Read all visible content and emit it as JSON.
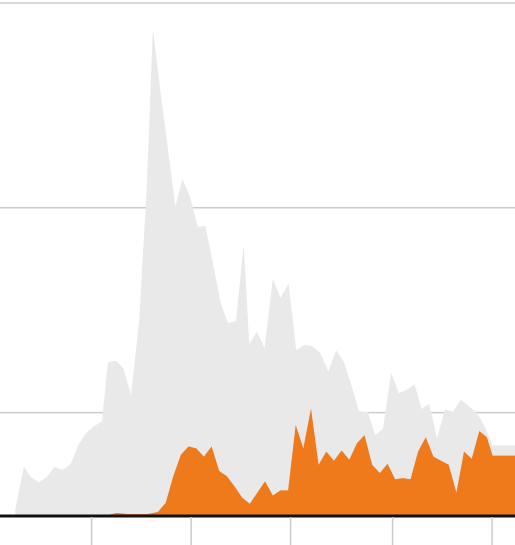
{
  "chart_data": {
    "type": "area",
    "title": "",
    "xlabel": "",
    "ylabel": "",
    "xlim": [
      0,
      100
    ],
    "ylim": [
      0,
      100
    ],
    "gridlines_y": [
      20,
      60,
      100
    ],
    "x_ticks": [
      17,
      36.5,
      56,
      76,
      95.5
    ],
    "grid": true,
    "legend": "none",
    "colors": {
      "background": "#e9e9e9",
      "foreground": "#ee7a1c",
      "grid": "#cccccc",
      "axis": "#111111"
    },
    "series": [
      {
        "key": "total",
        "values": [
          [
            2.0,
            1.0
          ],
          [
            3.7,
            9.4
          ],
          [
            5.1,
            7.4
          ],
          [
            6.6,
            6.4
          ],
          [
            8.2,
            7.4
          ],
          [
            9.7,
            9.4
          ],
          [
            11.3,
            8.8
          ],
          [
            12.8,
            9.8
          ],
          [
            14.4,
            13.7
          ],
          [
            15.9,
            16.0
          ],
          [
            17.5,
            17.4
          ],
          [
            19.0,
            18.2
          ],
          [
            20.2,
            29.9
          ],
          [
            21.8,
            30.1
          ],
          [
            23.2,
            28.7
          ],
          [
            24.7,
            23.4
          ],
          [
            26.3,
            37.7
          ],
          [
            27.8,
            64.1
          ],
          [
            29.0,
            94.9
          ],
          [
            30.5,
            82.6
          ],
          [
            32.0,
            71.1
          ],
          [
            33.4,
            60.2
          ],
          [
            34.8,
            65.6
          ],
          [
            36.3,
            62.1
          ],
          [
            37.8,
            56.3
          ],
          [
            39.3,
            56.5
          ],
          [
            40.8,
            49.0
          ],
          [
            42.3,
            41.4
          ],
          [
            43.7,
            37.5
          ],
          [
            45.3,
            37.9
          ],
          [
            46.8,
            52.7
          ],
          [
            47.9,
            33.4
          ],
          [
            49.4,
            35.8
          ],
          [
            50.9,
            32.6
          ],
          [
            52.5,
            46.2
          ],
          [
            54.0,
            42.4
          ],
          [
            55.6,
            45.2
          ],
          [
            57.1,
            32.2
          ],
          [
            58.7,
            33.2
          ],
          [
            60.2,
            33.0
          ],
          [
            61.8,
            31.7
          ],
          [
            63.4,
            28.0
          ],
          [
            64.9,
            32.2
          ],
          [
            66.4,
            30.0
          ],
          [
            68.0,
            25.1
          ],
          [
            69.5,
            20.0
          ],
          [
            71.1,
            20.2
          ],
          [
            72.6,
            15.6
          ],
          [
            74.1,
            16.8
          ],
          [
            75.7,
            27.8
          ],
          [
            77.2,
            23.8
          ],
          [
            78.7,
            24.4
          ],
          [
            80.3,
            25.5
          ],
          [
            81.7,
            20.7
          ],
          [
            83.2,
            21.7
          ],
          [
            84.7,
            15.0
          ],
          [
            86.3,
            20.6
          ],
          [
            87.8,
            20.2
          ],
          [
            89.4,
            22.5
          ],
          [
            90.9,
            21.3
          ],
          [
            92.5,
            19.9
          ],
          [
            93.5,
            18.3
          ],
          [
            94.6,
            16.0
          ],
          [
            95.6,
            13.6
          ],
          [
            100,
            13.6
          ],
          [
            100,
            0
          ],
          [
            2.0,
            0
          ]
        ]
      },
      {
        "key": "subset",
        "values": [
          [
            2.0,
            0.0
          ],
          [
            20.0,
            0.0
          ],
          [
            22.0,
            0.4
          ],
          [
            24.0,
            0.2
          ],
          [
            26.0,
            0.2
          ],
          [
            28.0,
            0.2
          ],
          [
            30.0,
            0.6
          ],
          [
            31.5,
            2.4
          ],
          [
            33.0,
            7.6
          ],
          [
            34.5,
            11.8
          ],
          [
            36.0,
            13.4
          ],
          [
            37.5,
            13.0
          ],
          [
            39.0,
            11.4
          ],
          [
            40.5,
            13.4
          ],
          [
            42.0,
            8.6
          ],
          [
            43.5,
            7.6
          ],
          [
            45.0,
            5.6
          ],
          [
            46.5,
            3.4
          ],
          [
            48.0,
            2.2
          ],
          [
            49.5,
            4.4
          ],
          [
            51.0,
            6.6
          ],
          [
            52.5,
            3.8
          ],
          [
            54.0,
            4.8
          ],
          [
            55.5,
            4.8
          ],
          [
            57.0,
            17.6
          ],
          [
            58.5,
            13.0
          ],
          [
            60.0,
            20.8
          ],
          [
            61.5,
            9.8
          ],
          [
            63.0,
            12.4
          ],
          [
            64.5,
            10.6
          ],
          [
            66.0,
            12.6
          ],
          [
            67.5,
            10.8
          ],
          [
            69.0,
            14.0
          ],
          [
            70.5,
            15.6
          ],
          [
            72.0,
            9.8
          ],
          [
            73.5,
            8.2
          ],
          [
            75.0,
            10.0
          ],
          [
            76.5,
            7.0
          ],
          [
            78.0,
            7.2
          ],
          [
            79.5,
            7.0
          ],
          [
            81.0,
            12.4
          ],
          [
            82.5,
            15.2
          ],
          [
            84.0,
            11.4
          ],
          [
            85.5,
            10.6
          ],
          [
            87.0,
            9.8
          ],
          [
            88.5,
            4.4
          ],
          [
            90.0,
            12.4
          ],
          [
            91.5,
            11.0
          ],
          [
            93.0,
            16.4
          ],
          [
            94.5,
            15.2
          ],
          [
            95.6,
            11.6
          ],
          [
            100,
            11.6
          ],
          [
            100,
            0
          ]
        ]
      }
    ]
  }
}
